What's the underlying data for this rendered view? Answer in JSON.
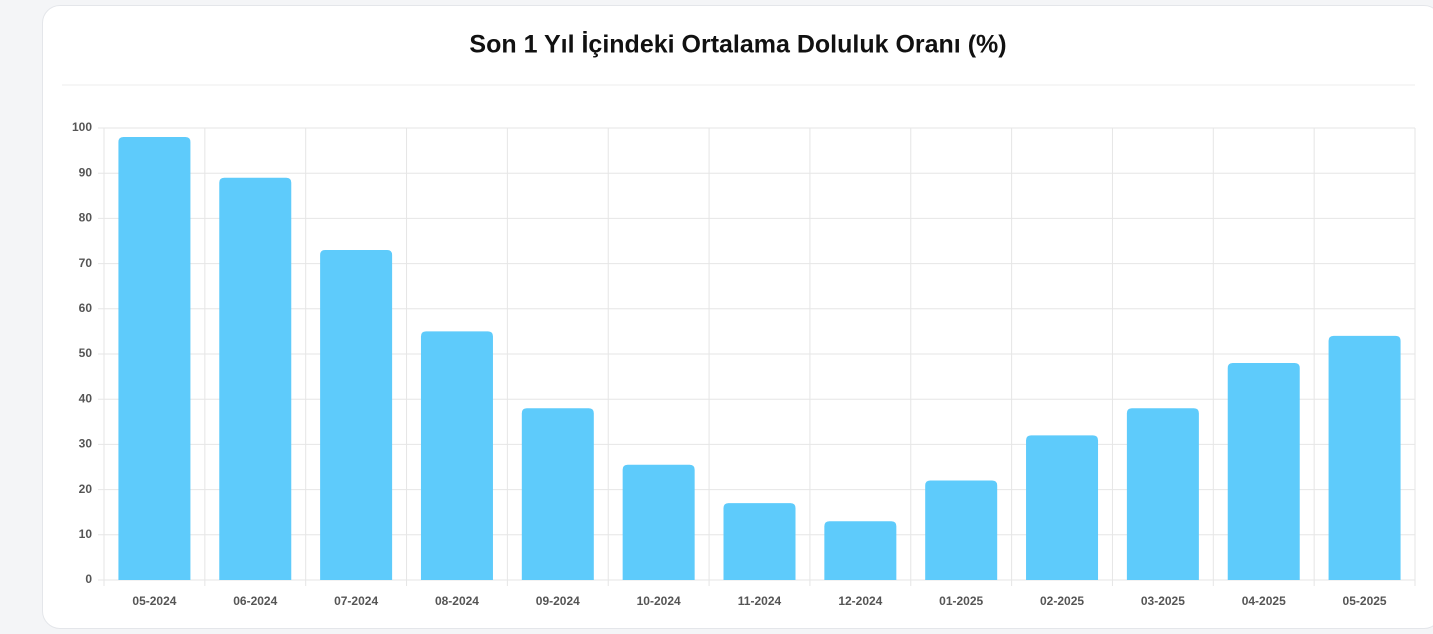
{
  "chart_data": {
    "type": "bar",
    "title": "Son 1 Yıl İçindeki Ortalama Doluluk Oranı (%)",
    "categories": [
      "05-2024",
      "06-2024",
      "07-2024",
      "08-2024",
      "09-2024",
      "10-2024",
      "11-2024",
      "12-2024",
      "01-2025",
      "02-2025",
      "03-2025",
      "04-2025",
      "05-2025"
    ],
    "values": [
      98,
      89,
      73,
      55,
      38,
      25.5,
      17,
      13,
      22,
      32,
      38,
      48,
      54
    ],
    "color": "#5ecbfb",
    "ylim": [
      0,
      100
    ],
    "yticks": [
      0,
      10,
      20,
      30,
      40,
      50,
      60,
      70,
      80,
      90,
      100
    ],
    "grid": true
  }
}
